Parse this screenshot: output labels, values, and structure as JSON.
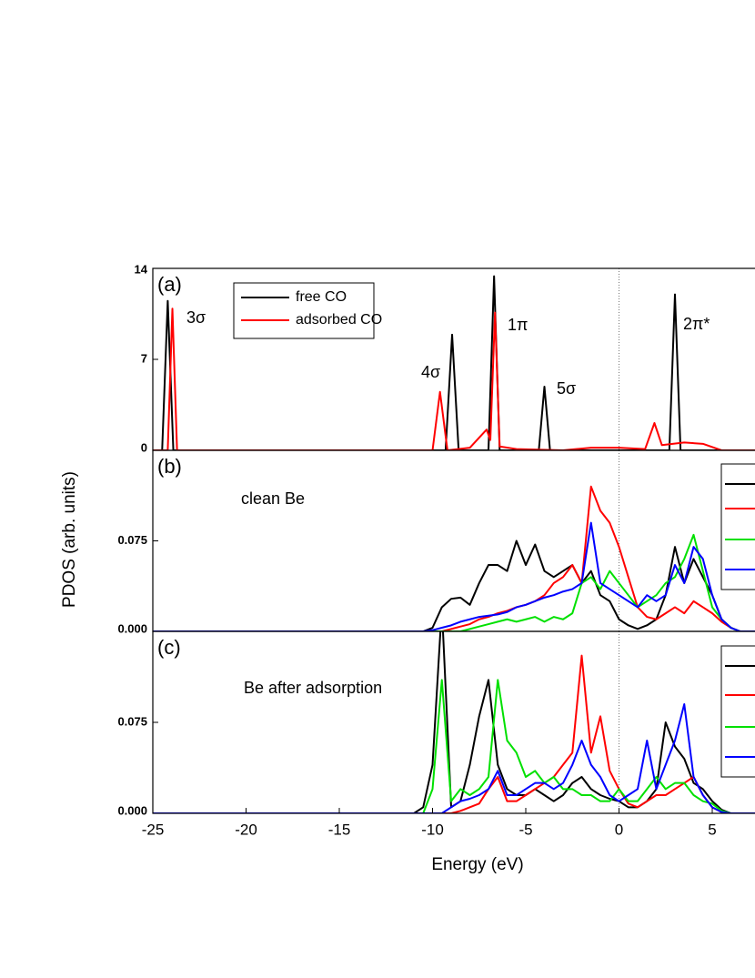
{
  "chart_data": [
    {
      "type": "line",
      "panel_label": "(a)",
      "xlim": [
        -25,
        7.5
      ],
      "ylim": [
        0,
        14
      ],
      "yticks": [
        0,
        7,
        14
      ],
      "vline": 0,
      "annotations": [
        "3σ",
        "4σ",
        "1π",
        "5σ",
        "2π*"
      ],
      "series": [
        {
          "name": "free CO",
          "color": "#000000",
          "x": [
            -25,
            -24.5,
            -24.2,
            -23.9,
            -9.3,
            -8.95,
            -8.6,
            -7.0,
            -6.7,
            -6.4,
            -4.3,
            -4.0,
            -3.7,
            2.7,
            3.0,
            3.3,
            7.5
          ],
          "values": [
            0,
            0,
            11.5,
            0,
            0,
            8.9,
            0,
            0,
            13.4,
            0,
            0,
            4.9,
            0,
            0,
            12.0,
            0,
            0
          ]
        },
        {
          "name": "adsorbed CO",
          "color": "#ff0000",
          "x": [
            -25,
            -24.2,
            -23.95,
            -23.7,
            -10.0,
            -9.6,
            -9.2,
            -8.0,
            -7.1,
            -6.9,
            -6.65,
            -6.4,
            -5.5,
            -3.0,
            -1.5,
            0,
            1.4,
            1.9,
            2.3,
            3.5,
            4.5,
            5.5,
            7.5
          ],
          "values": [
            0,
            0,
            10.9,
            0,
            0,
            4.5,
            0,
            0.2,
            1.6,
            0.8,
            10.6,
            0.3,
            0.1,
            0,
            0.2,
            0.2,
            0.1,
            2.1,
            0.4,
            0.6,
            0.5,
            0,
            0
          ]
        }
      ]
    },
    {
      "type": "line",
      "panel_label": "(b)",
      "text": "clean Be",
      "ylabel": "PDOS (arb. units)",
      "xlim": [
        -25,
        7.5
      ],
      "ylim": [
        0,
        0.15
      ],
      "yticks": [
        {
          "value": 0,
          "label": "0.000"
        },
        {
          "value": 0.075,
          "label": "0.075"
        }
      ],
      "vline": 0,
      "x": [
        -25,
        -11,
        -10.5,
        -10,
        -9.5,
        -9,
        -8.5,
        -8,
        -7.5,
        -7,
        -6.5,
        -6,
        -5.5,
        -5,
        -4.5,
        -4,
        -3.5,
        -3,
        -2.5,
        -2,
        -1.5,
        -1,
        -0.5,
        0,
        0.5,
        1,
        1.5,
        2,
        2.5,
        3,
        3.5,
        4,
        4.5,
        5,
        5.5,
        6,
        6.5,
        7,
        7.5
      ],
      "series": [
        {
          "color": "#000000",
          "values": [
            0,
            0,
            0,
            0.003,
            0.02,
            0.027,
            0.028,
            0.022,
            0.04,
            0.055,
            0.055,
            0.05,
            0.075,
            0.055,
            0.072,
            0.05,
            0.045,
            0.05,
            0.055,
            0.04,
            0.05,
            0.03,
            0.025,
            0.01,
            0.005,
            0.002,
            0.005,
            0.01,
            0.03,
            0.07,
            0.04,
            0.06,
            0.045,
            0.03,
            0.01,
            0.003,
            0,
            0,
            0
          ]
        },
        {
          "color": "#ff0000",
          "values": [
            0,
            0,
            0,
            0,
            0,
            0.002,
            0.004,
            0.006,
            0.01,
            0.012,
            0.015,
            0.017,
            0.02,
            0.022,
            0.025,
            0.03,
            0.04,
            0.045,
            0.055,
            0.04,
            0.12,
            0.1,
            0.09,
            0.07,
            0.045,
            0.02,
            0.012,
            0.01,
            0.015,
            0.02,
            0.015,
            0.025,
            0.02,
            0.015,
            0.008,
            0.003,
            0,
            0,
            0
          ]
        },
        {
          "color": "#00e000",
          "values": [
            0,
            0,
            0,
            0,
            0,
            0,
            0,
            0.002,
            0.004,
            0.006,
            0.008,
            0.01,
            0.008,
            0.01,
            0.012,
            0.008,
            0.012,
            0.01,
            0.015,
            0.04,
            0.045,
            0.035,
            0.05,
            0.04,
            0.03,
            0.02,
            0.025,
            0.03,
            0.04,
            0.045,
            0.06,
            0.08,
            0.05,
            0.02,
            0.01,
            0.003,
            0,
            0,
            0
          ]
        },
        {
          "color": "#0000ff",
          "values": [
            0,
            0,
            0,
            0.001,
            0.003,
            0.005,
            0.008,
            0.01,
            0.012,
            0.013,
            0.014,
            0.016,
            0.02,
            0.022,
            0.025,
            0.028,
            0.03,
            0.033,
            0.035,
            0.04,
            0.09,
            0.04,
            0.035,
            0.03,
            0.025,
            0.02,
            0.03,
            0.025,
            0.03,
            0.055,
            0.04,
            0.07,
            0.06,
            0.03,
            0.01,
            0.003,
            0,
            0,
            0
          ]
        }
      ]
    },
    {
      "type": "line",
      "panel_label": "(c)",
      "text": "Be after adsorption",
      "xlabel": "Energy (eV)",
      "xlim": [
        -25,
        7.5
      ],
      "xticks": [
        -25,
        -20,
        -15,
        -10,
        -5,
        0,
        5
      ],
      "ylim": [
        0,
        0.15
      ],
      "yticks": [
        {
          "value": 0,
          "label": "0.000"
        },
        {
          "value": 0.075,
          "label": "0.075"
        }
      ],
      "vline": 0,
      "x": [
        -25,
        -11,
        -10.5,
        -10,
        -9.5,
        -9,
        -8.5,
        -8,
        -7.5,
        -7,
        -6.5,
        -6,
        -5.5,
        -5,
        -4.5,
        -4,
        -3.5,
        -3,
        -2.5,
        -2,
        -1.5,
        -1,
        -0.5,
        0,
        0.5,
        1,
        1.5,
        2,
        2.5,
        3,
        3.5,
        4,
        4.5,
        5,
        5.5,
        6,
        6.5,
        7,
        7.5
      ],
      "series": [
        {
          "color": "#000000",
          "values": [
            0,
            0,
            0.005,
            0.04,
            0.17,
            0.005,
            0.01,
            0.04,
            0.08,
            0.11,
            0.04,
            0.02,
            0.015,
            0.015,
            0.02,
            0.015,
            0.01,
            0.015,
            0.025,
            0.03,
            0.02,
            0.015,
            0.012,
            0.01,
            0.005,
            0.005,
            0.01,
            0.02,
            0.075,
            0.055,
            0.045,
            0.025,
            0.02,
            0.01,
            0.003,
            0,
            0,
            0,
            0
          ]
        },
        {
          "color": "#ff0000",
          "values": [
            0,
            0,
            0,
            0,
            0,
            0,
            0.002,
            0.005,
            0.008,
            0.02,
            0.03,
            0.01,
            0.01,
            0.015,
            0.02,
            0.025,
            0.03,
            0.04,
            0.05,
            0.13,
            0.05,
            0.08,
            0.035,
            0.02,
            0.008,
            0.005,
            0.01,
            0.015,
            0.015,
            0.02,
            0.025,
            0.03,
            0.015,
            0.005,
            0.001,
            0,
            0,
            0,
            0
          ]
        },
        {
          "color": "#00e000",
          "values": [
            0,
            0,
            0,
            0.02,
            0.11,
            0.01,
            0.02,
            0.015,
            0.02,
            0.03,
            0.11,
            0.06,
            0.05,
            0.03,
            0.035,
            0.025,
            0.03,
            0.02,
            0.02,
            0.015,
            0.015,
            0.01,
            0.01,
            0.02,
            0.01,
            0.01,
            0.02,
            0.03,
            0.02,
            0.025,
            0.025,
            0.015,
            0.01,
            0.008,
            0.002,
            0,
            0,
            0,
            0
          ]
        },
        {
          "color": "#0000ff",
          "values": [
            0,
            0,
            0,
            0,
            0,
            0.005,
            0.01,
            0.012,
            0.015,
            0.02,
            0.035,
            0.015,
            0.015,
            0.02,
            0.025,
            0.025,
            0.02,
            0.025,
            0.04,
            0.06,
            0.04,
            0.03,
            0.015,
            0.01,
            0.015,
            0.02,
            0.06,
            0.02,
            0.04,
            0.06,
            0.09,
            0.03,
            0.015,
            0.005,
            0.001,
            0,
            0,
            0,
            0
          ]
        }
      ]
    }
  ]
}
